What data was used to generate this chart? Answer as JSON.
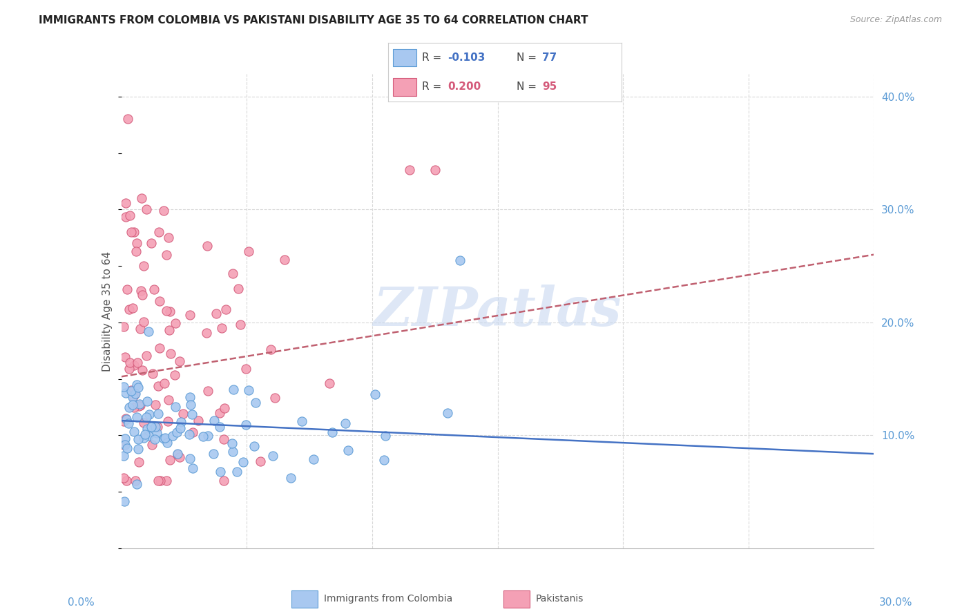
{
  "title": "IMMIGRANTS FROM COLOMBIA VS PAKISTANI DISABILITY AGE 35 TO 64 CORRELATION CHART",
  "source": "Source: ZipAtlas.com",
  "ylabel": "Disability Age 35 to 64",
  "ytick_labels": [
    "40.0%",
    "30.0%",
    "20.0%",
    "10.0%"
  ],
  "ytick_vals": [
    0.4,
    0.3,
    0.2,
    0.1
  ],
  "xmin": 0.0,
  "xmax": 0.3,
  "ymin": 0.0,
  "ymax": 0.42,
  "colombia_fill": "#a8c8f0",
  "colombia_edge": "#5b9bd5",
  "pakistan_fill": "#f4a0b5",
  "pakistan_edge": "#d45a7a",
  "colombia_line_color": "#4472c4",
  "pakistan_line_color": "#c06070",
  "background_color": "#ffffff",
  "grid_color": "#d8d8d8",
  "tick_color": "#5b9bd5",
  "watermark_color": "#c8d8f0"
}
